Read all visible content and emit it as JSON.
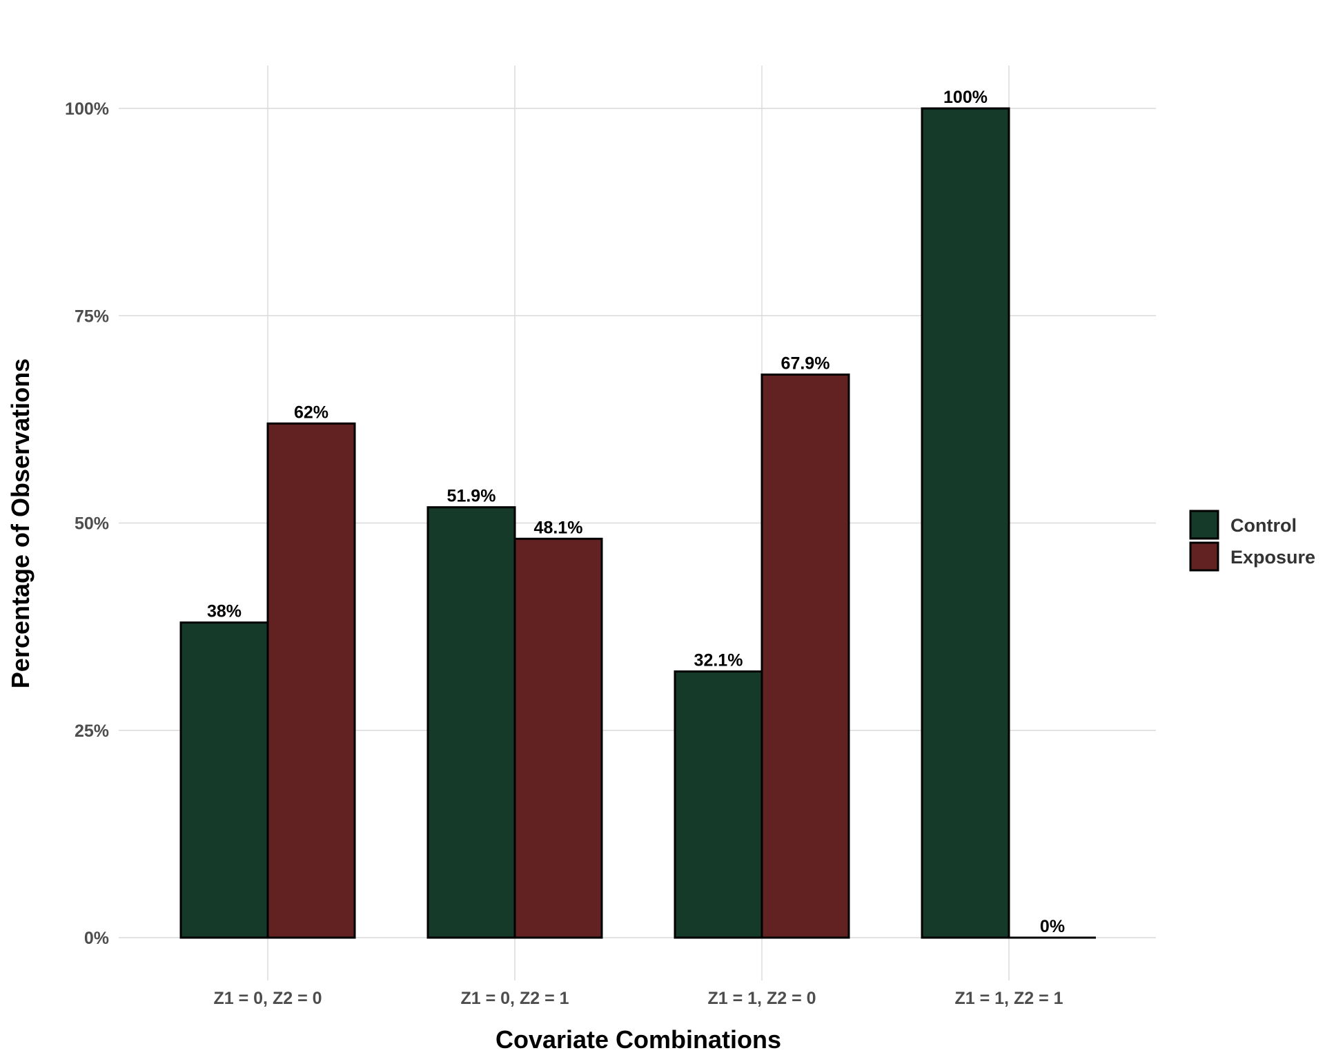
{
  "chart_data": {
    "type": "bar",
    "title": "",
    "xlabel": "Covariate Combinations",
    "ylabel": "Percentage of Observations",
    "categories": [
      "Z1 = 0, Z2 = 0",
      "Z1 = 0, Z2 = 1",
      "Z1 = 1, Z2 = 0",
      "Z1 = 1, Z2 = 1"
    ],
    "series": [
      {
        "name": "Control",
        "color": "#153A2A",
        "values": [
          38,
          51.9,
          32.1,
          100
        ],
        "labels": [
          "38%",
          "51.9%",
          "32.1%",
          "100%"
        ]
      },
      {
        "name": "Exposure",
        "color": "#632222",
        "values": [
          62,
          48.1,
          67.9,
          0
        ],
        "labels": [
          "62%",
          "48.1%",
          "67.9%",
          "0%"
        ]
      }
    ],
    "ylim": [
      0,
      100
    ],
    "yticks": [
      0,
      25,
      50,
      75,
      100
    ],
    "ytick_labels": [
      "0%",
      "25%",
      "50%",
      "75%",
      "100%"
    ],
    "grid": true,
    "legend_position": "right"
  }
}
